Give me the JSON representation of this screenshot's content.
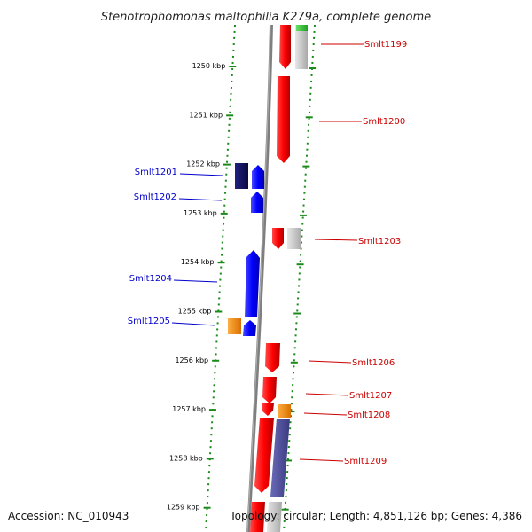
{
  "title": "Stenotrophomonas maltophilia K279a, complete genome",
  "accession": "Accession: NC_010943",
  "topology": "Topology: circular; Length: 4,851,126 bp; Genes: 4,386",
  "colors": {
    "backbone": "#7f7f7f",
    "ruler": "#1a8a1a",
    "forward_gene": "#ff0000",
    "reverse_gene": "#0000ff",
    "reverse_dark": "#101060",
    "grey_feature": "#c8c8c8",
    "orange_feature": "#ff8c00",
    "purple_feature": "#4b4b9b",
    "green_feature": "#33cc33",
    "fwd_label": "#cc0000",
    "rev_label": "#0000cc"
  },
  "ruler": {
    "unit": "kbp",
    "ticks": [
      "1250 kbp",
      "1251 kbp",
      "1252 kbp",
      "1253 kbp",
      "1254 kbp",
      "1255 kbp",
      "1256 kbp",
      "1257 kbp",
      "1258 kbp",
      "1259 kbp"
    ]
  },
  "gene_labels": {
    "forward": [
      "Smlt1199",
      "Smlt1200",
      "Smlt1203",
      "Smlt1206",
      "Smlt1207",
      "Smlt1208",
      "Smlt1209"
    ],
    "reverse": [
      "Smlt1201",
      "Smlt1202",
      "Smlt1204",
      "Smlt1205"
    ]
  }
}
